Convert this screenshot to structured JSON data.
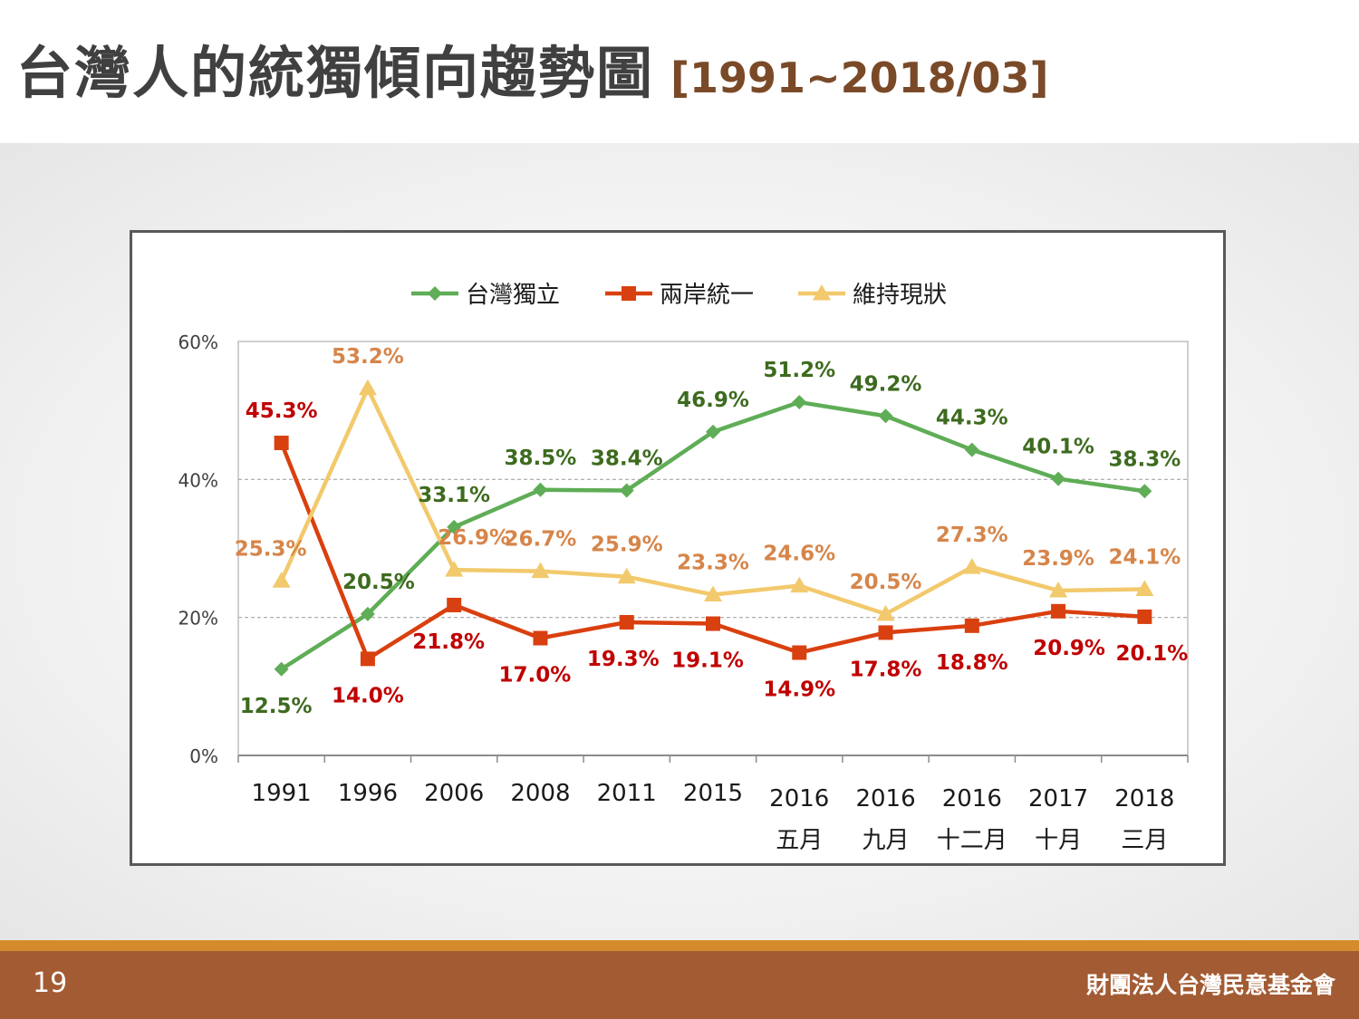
{
  "title": {
    "main": "台灣人的統獨傾向趨勢圖",
    "range": "[1991~2018/03]"
  },
  "footer": {
    "page_number": "19",
    "organization": "財團法人台灣民意基金會"
  },
  "colors": {
    "independence": "#5fad56",
    "independence_label": "#3d6b1f",
    "unification": "#d9400f",
    "unification_label": "#c00000",
    "status_quo": "#f2c96c",
    "status_quo_label": "#d6854a",
    "gridline": "#a6a6a6"
  },
  "chart_data": {
    "type": "line",
    "categories": [
      [
        "1991"
      ],
      [
        "1996"
      ],
      [
        "2006"
      ],
      [
        "2008"
      ],
      [
        "2011"
      ],
      [
        "2015"
      ],
      [
        "2016",
        "五月"
      ],
      [
        "2016",
        "九月"
      ],
      [
        "2016",
        "十二月"
      ],
      [
        "2017",
        "十月"
      ],
      [
        "2018",
        "三月"
      ]
    ],
    "series": [
      {
        "name": "台灣獨立",
        "marker": "diamond",
        "values": [
          12.5,
          20.5,
          33.1,
          38.5,
          38.4,
          46.9,
          51.2,
          49.2,
          44.3,
          40.1,
          38.3
        ],
        "labels": [
          "12.5%",
          "20.5%",
          "33.1%",
          "38.5%",
          "38.4%",
          "46.9%",
          "51.2%",
          "49.2%",
          "44.3%",
          "40.1%",
          "38.3%"
        ]
      },
      {
        "name": "兩岸統一",
        "marker": "square",
        "values": [
          45.3,
          14.0,
          21.8,
          17.0,
          19.3,
          19.1,
          14.9,
          17.8,
          18.8,
          20.9,
          20.1
        ],
        "labels": [
          "45.3%",
          "14.0%",
          "21.8%",
          "17.0%",
          "19.3%",
          "19.1%",
          "14.9%",
          "17.8%",
          "18.8%",
          "20.9%",
          "20.1%"
        ]
      },
      {
        "name": "維持現狀",
        "marker": "triangle",
        "values": [
          25.3,
          53.2,
          26.9,
          26.7,
          25.9,
          23.3,
          24.6,
          20.5,
          27.3,
          23.9,
          24.1
        ],
        "labels": [
          "25.3%",
          "53.2%",
          "26.9%",
          "26.7%",
          "25.9%",
          "23.3%",
          "24.6%",
          "20.5%",
          "27.3%",
          "23.9%",
          "24.1%"
        ]
      }
    ],
    "y_ticks": [
      "0%",
      "20%",
      "40%",
      "60%"
    ],
    "y_tick_values": [
      0,
      20,
      40,
      60
    ],
    "ylim": [
      0,
      60
    ],
    "grid": "horizontal dashed",
    "legend": "top-center"
  }
}
